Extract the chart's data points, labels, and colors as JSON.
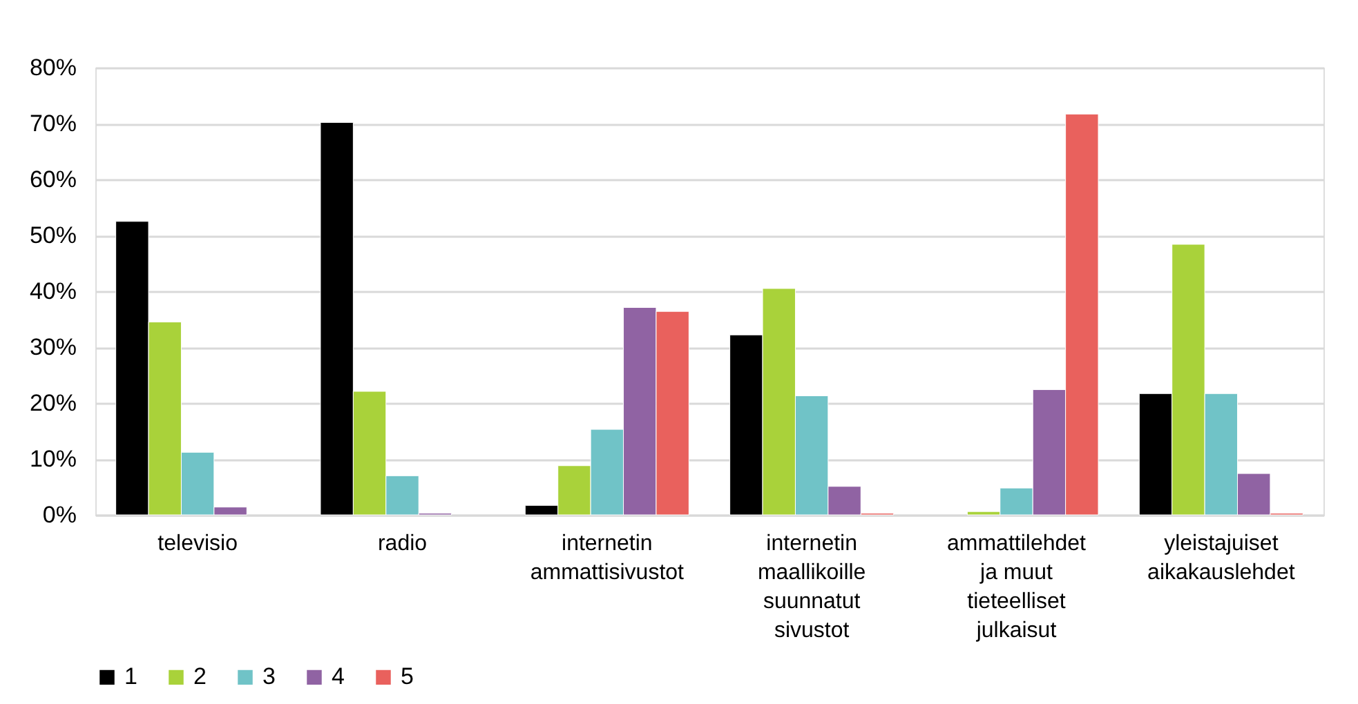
{
  "chart_data": {
    "type": "bar",
    "categories": [
      "televisio",
      "radio",
      "internetin ammattisivustot",
      "internetin maallikoille suunnatut sivustot",
      "ammattilehdet ja muut tieteelliset julkaisut",
      "yleistajuiset aikakauslehdet"
    ],
    "series": [
      {
        "name": "1",
        "color": "#000000",
        "values": [
          52.5,
          70.2,
          1.7,
          32.2,
          null,
          21.7
        ]
      },
      {
        "name": "2",
        "color": "#a9d23a",
        "values": [
          34.5,
          22.1,
          8.8,
          40.5,
          0.6,
          48.4
        ]
      },
      {
        "name": "3",
        "color": "#70c3c7",
        "values": [
          11.2,
          7.0,
          15.3,
          21.3,
          4.8,
          21.7
        ]
      },
      {
        "name": "4",
        "color": "#9063a3",
        "values": [
          1.4,
          0.3,
          37.1,
          5.1,
          22.4,
          7.4
        ]
      },
      {
        "name": "5",
        "color": "#e9615d",
        "values": [
          null,
          null,
          36.4,
          0.3,
          71.7,
          0.3
        ]
      }
    ],
    "ylim": [
      0,
      80
    ],
    "yticks": [
      {
        "value": 0,
        "label": "0%"
      },
      {
        "value": 10,
        "label": "10%"
      },
      {
        "value": 20,
        "label": "20%"
      },
      {
        "value": 30,
        "label": "30%"
      },
      {
        "value": 40,
        "label": "40%"
      },
      {
        "value": 50,
        "label": "50%"
      },
      {
        "value": 60,
        "label": "60%"
      },
      {
        "value": 70,
        "label": "70%"
      },
      {
        "value": 80,
        "label": "80%"
      }
    ],
    "grid": "y",
    "legend": "bottom"
  }
}
